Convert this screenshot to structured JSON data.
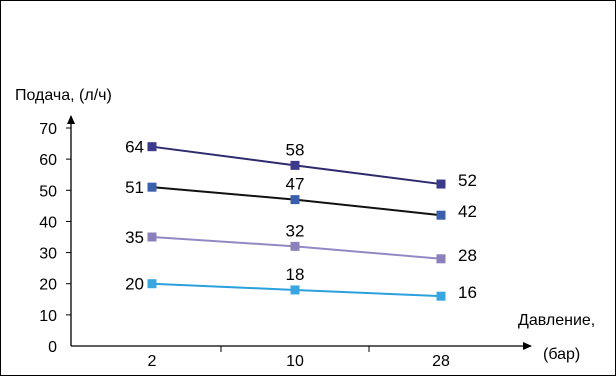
{
  "chart_data": {
    "type": "line",
    "title": "",
    "ylabel": "Подача, (л/ч)",
    "xlabel_line1": "Давление,",
    "xlabel_line2": "(бар)",
    "categories": [
      "2",
      "10",
      "28"
    ],
    "yticks": [
      "0",
      "10",
      "20",
      "30",
      "40",
      "50",
      "60",
      "70"
    ],
    "ylim": [
      0,
      70
    ],
    "grid": false,
    "legend": "none",
    "series": [
      {
        "values": [
          64,
          58,
          52
        ],
        "labels": [
          "64",
          "58",
          "52"
        ],
        "color": "#2e2a6e",
        "marker": "#3c3a8a"
      },
      {
        "values": [
          51,
          47,
          42
        ],
        "labels": [
          "51",
          "47",
          "42"
        ],
        "color": "#111111",
        "marker": "#3a5fad"
      },
      {
        "values": [
          35,
          32,
          28
        ],
        "labels": [
          "35",
          "32",
          "28"
        ],
        "color": "#9488c4",
        "marker": "#8c80bc"
      },
      {
        "values": [
          20,
          18,
          16
        ],
        "labels": [
          "20",
          "18",
          "16"
        ],
        "color": "#2aa0dc",
        "marker": "#3aa6e0"
      }
    ]
  }
}
